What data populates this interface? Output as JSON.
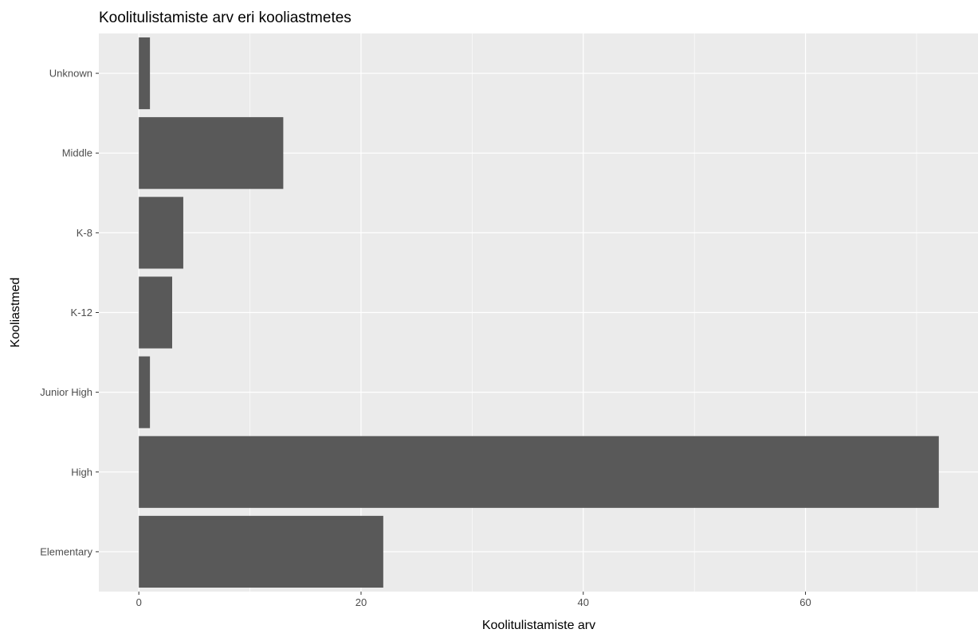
{
  "chart_data": {
    "type": "bar",
    "orientation": "horizontal",
    "title": "Koolitulistamiste arv eri kooliastmetes",
    "xlabel": "Koolitulistamiste arv",
    "ylabel": "Kooliastmed",
    "categories": [
      "Elementary",
      "High",
      "Junior High",
      "K-12",
      "K-8",
      "Middle",
      "Unknown"
    ],
    "values": [
      22,
      72,
      1,
      3,
      4,
      13,
      1
    ],
    "xlim": [
      -3.6,
      75.6
    ],
    "xticks": [
      0,
      20,
      40,
      60
    ],
    "xtick_labels": [
      "0",
      "20",
      "40",
      "60"
    ],
    "grid": true,
    "colors": {
      "panel_background": "#ebebeb",
      "grid_line": "#ffffff",
      "bar_fill": "#595959",
      "tick_label": "#4d4d4d",
      "tick_mark": "#333333",
      "text": "#000000"
    }
  }
}
